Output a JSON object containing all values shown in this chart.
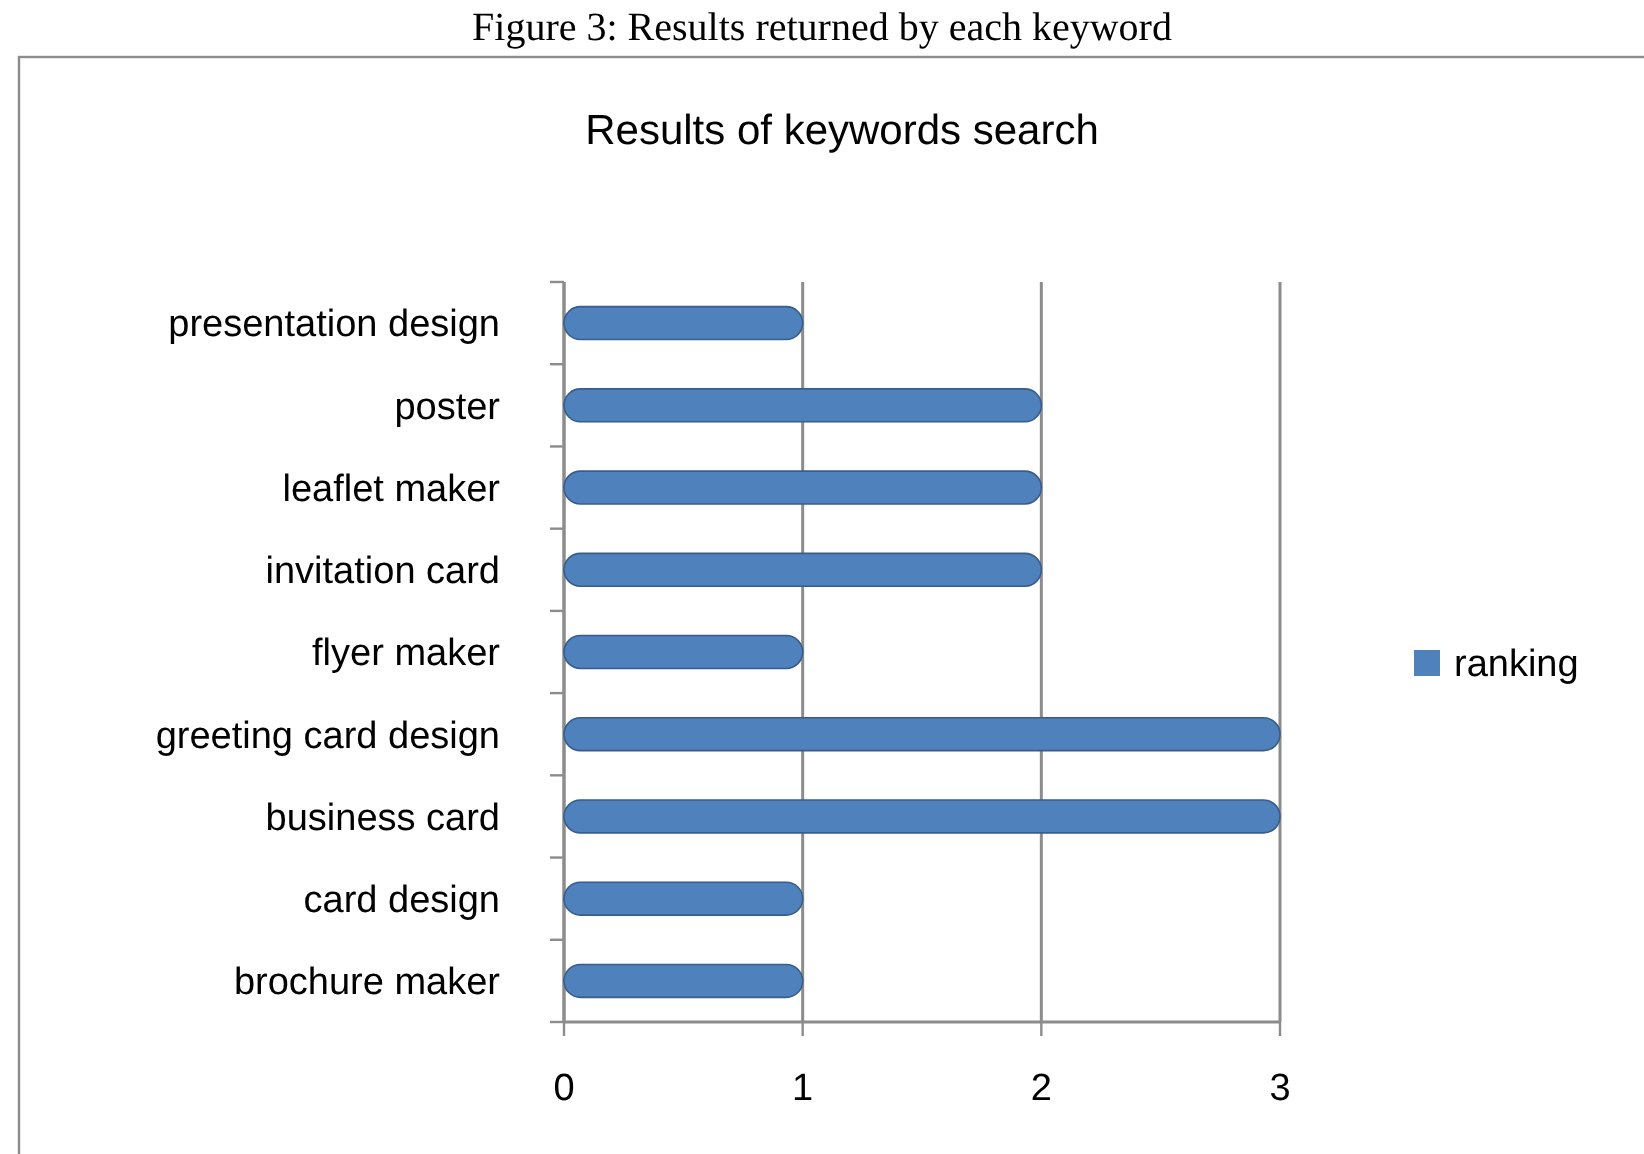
{
  "chart_data": {
    "type": "bar",
    "orientation": "horizontal",
    "title": "Results of keywords search",
    "annotations": [
      "Figure 3: Results returned by each keyword"
    ],
    "categories": [
      "presentation design",
      "poster",
      "leaflet maker",
      "invitation card",
      "flyer maker",
      "greeting card design",
      "business card",
      "card design",
      "brochure maker"
    ],
    "series": [
      {
        "name": "ranking",
        "color": "#4f81bd",
        "values": [
          1,
          2,
          2,
          2,
          1,
          3,
          3,
          1,
          1
        ]
      }
    ],
    "xlim": [
      0,
      3
    ],
    "xticks": [
      0,
      1,
      2,
      3
    ],
    "grid": "x",
    "legend": "right"
  }
}
